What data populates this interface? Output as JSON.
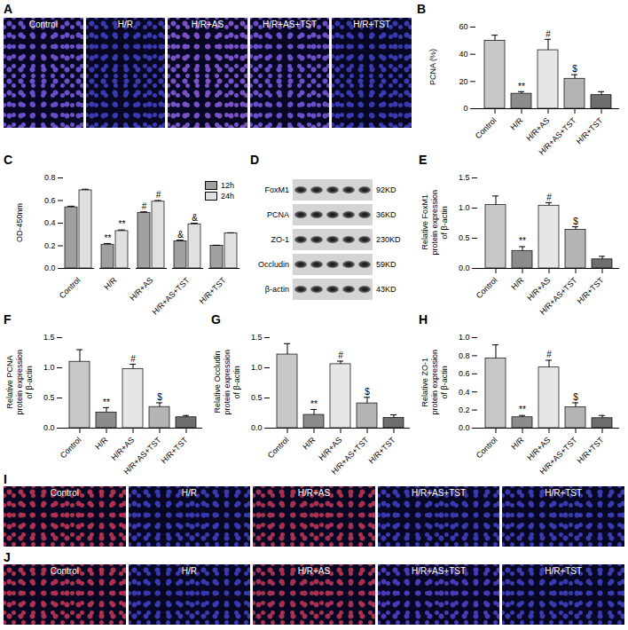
{
  "chart_data": [
    {
      "panel": "B",
      "type": "bar",
      "y_label": "PCNA (%)",
      "categories": [
        "Control",
        "H/R",
        "H/R+AS",
        "H/R+AS+TST",
        "H/R+TST"
      ],
      "values": [
        50,
        11,
        43,
        22,
        10
      ],
      "errors": [
        4,
        1.5,
        8,
        3,
        2.5
      ],
      "annotations": [
        null,
        "**",
        "#",
        "$",
        null
      ],
      "colors": [
        "#c8c8c8",
        "#8c8c8c",
        "#e6e6e6",
        "#b4b4b4",
        "#6e6e6e"
      ],
      "ylim": [
        0,
        60
      ],
      "yticks": [
        0,
        20,
        40,
        60
      ]
    },
    {
      "panel": "C",
      "type": "bar",
      "y_label": "OD-450nm",
      "categories": [
        "Control",
        "H/R",
        "H/R+AS",
        "H/R+AS+TST",
        "H/R+TST"
      ],
      "series": [
        {
          "name": "12h",
          "color": "#a0a0a0",
          "values": [
            0.54,
            0.21,
            0.49,
            0.24,
            0.2
          ],
          "errors": [
            0.01,
            0.01,
            0.01,
            0.01,
            0.005
          ],
          "annotations": [
            null,
            "**",
            "#",
            "&",
            null
          ]
        },
        {
          "name": "24h",
          "color": "#e0e0e0",
          "values": [
            0.69,
            0.33,
            0.59,
            0.39,
            0.31
          ],
          "errors": [
            0.01,
            0.01,
            0.01,
            0.01,
            0.005
          ],
          "annotations": [
            null,
            "**",
            "#",
            "&",
            null
          ]
        }
      ],
      "ylim": [
        0,
        0.8
      ],
      "yticks": [
        {
          "value": 0,
          "label": "0.0"
        },
        {
          "value": 0.2,
          "label": "0.2"
        },
        {
          "value": 0.4,
          "label": "0.4"
        },
        {
          "value": 0.6,
          "label": "0.6"
        },
        {
          "value": 0.8,
          "label": "0.8"
        }
      ],
      "legend": "top-right"
    },
    {
      "panel": "E",
      "type": "bar",
      "y_label": "Relative FoxM1 protein expression of β-actin",
      "categories": [
        "Control",
        "H/R",
        "H/R+AS",
        "H/R+AS+TST",
        "H/R+TST"
      ],
      "values": [
        1.05,
        0.29,
        1.04,
        0.64,
        0.15
      ],
      "errors": [
        0.15,
        0.07,
        0.05,
        0.05,
        0.05
      ],
      "annotations": [
        null,
        "**",
        "#",
        "$",
        null
      ],
      "colors": [
        "#c8c8c8",
        "#8c8c8c",
        "#e6e6e6",
        "#b4b4b4",
        "#6e6e6e"
      ],
      "ylim": [
        0,
        1.5
      ],
      "yticks": [
        {
          "value": 0,
          "label": "0.0"
        },
        {
          "value": 0.5,
          "label": "0.5"
        },
        {
          "value": 1,
          "label": "1.0"
        },
        {
          "value": 1.5,
          "label": "1.5"
        }
      ]
    },
    {
      "panel": "F",
      "type": "bar",
      "y_label": "Relative PCNA protein expression of β-actin",
      "categories": [
        "Control",
        "H/R",
        "H/R+AS",
        "H/R+AS+TST",
        "H/R+TST"
      ],
      "values": [
        1.1,
        0.26,
        0.98,
        0.35,
        0.18
      ],
      "errors": [
        0.2,
        0.08,
        0.08,
        0.07,
        0.03
      ],
      "annotations": [
        null,
        "**",
        "#",
        "$",
        null
      ],
      "colors": [
        "#c8c8c8",
        "#8c8c8c",
        "#e6e6e6",
        "#b4b4b4",
        "#6e6e6e"
      ],
      "ylim": [
        0,
        1.5
      ],
      "yticks": [
        {
          "value": 0,
          "label": "0.0"
        },
        {
          "value": 0.5,
          "label": "0.5"
        },
        {
          "value": 1,
          "label": "1.0"
        },
        {
          "value": 1.5,
          "label": "1.5"
        }
      ]
    },
    {
      "panel": "G",
      "type": "bar",
      "y_label": "Relative Occludin protein expression of β-actin",
      "categories": [
        "Control",
        "H/R",
        "H/R+AS",
        "H/R+AS+TST",
        "H/R+TST"
      ],
      "values": [
        1.22,
        0.22,
        1.06,
        0.41,
        0.17
      ],
      "errors": [
        0.18,
        0.09,
        0.05,
        0.1,
        0.05
      ],
      "annotations": [
        null,
        "**",
        "#",
        "$",
        null
      ],
      "colors": [
        "#c8c8c8",
        "#8c8c8c",
        "#e6e6e6",
        "#b4b4b4",
        "#6e6e6e"
      ],
      "ylim": [
        0,
        1.5
      ],
      "yticks": [
        {
          "value": 0,
          "label": "0.0"
        },
        {
          "value": 0.5,
          "label": "0.5"
        },
        {
          "value": 1,
          "label": "1.0"
        },
        {
          "value": 1.5,
          "label": "1.5"
        }
      ]
    },
    {
      "panel": "H",
      "type": "bar",
      "y_label": "Relative ZO-1 protein expression of β-actin",
      "categories": [
        "Control",
        "H/R",
        "H/R+AS",
        "H/R+AS+TST",
        "H/R+TST"
      ],
      "values": [
        0.77,
        0.12,
        0.67,
        0.23,
        0.11
      ],
      "errors": [
        0.15,
        0.02,
        0.08,
        0.05,
        0.03
      ],
      "annotations": [
        null,
        "**",
        "#",
        "$",
        null
      ],
      "colors": [
        "#c8c8c8",
        "#8c8c8c",
        "#e6e6e6",
        "#b4b4b4",
        "#6e6e6e"
      ],
      "ylim": [
        0,
        1
      ],
      "yticks": [
        {
          "value": 0,
          "label": "0.0"
        },
        {
          "value": 0.2,
          "label": "0.2"
        },
        {
          "value": 0.4,
          "label": "0.4"
        },
        {
          "value": 0.6,
          "label": "0.6"
        },
        {
          "value": 0.8,
          "label": "0.8"
        },
        {
          "value": 1,
          "label": "1.0"
        }
      ]
    }
  ],
  "image_panels": [
    {
      "panel": "A",
      "labels": [
        "Control",
        "H/R",
        "H/R+AS",
        "H/R+AS+TST",
        "H/R+TST"
      ]
    },
    {
      "panel": "I",
      "labels": [
        "Control",
        "H/R",
        "H/R+AS",
        "H/R+AS+TST",
        "H/R+TST"
      ]
    },
    {
      "panel": "J",
      "labels": [
        "Control",
        "H/R",
        "H/R+AS",
        "H/R+AS+TST",
        "H/R+TST"
      ]
    }
  ],
  "blot": {
    "panel": "D",
    "rows": [
      {
        "name": "FoxM1",
        "size": "92KD"
      },
      {
        "name": "PCNA",
        "size": "36KD"
      },
      {
        "name": "ZO-1",
        "size": "230KD"
      },
      {
        "name": "Occludin",
        "size": "59KD"
      },
      {
        "name": "β-actin",
        "size": "43KD"
      }
    ]
  }
}
